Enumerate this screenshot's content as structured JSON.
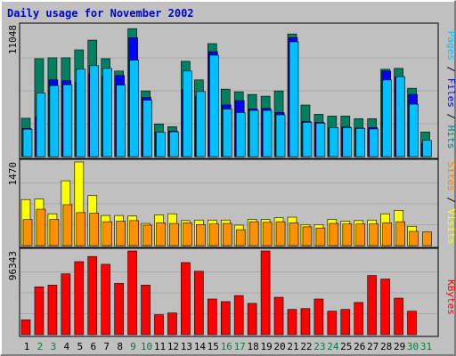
{
  "chart_data": {
    "type": "bar",
    "title": "Daily usage for November 2002",
    "title_color": "#0000cc",
    "categories": [
      "1",
      "2",
      "3",
      "4",
      "5",
      "6",
      "7",
      "8",
      "9",
      "10",
      "11",
      "12",
      "13",
      "14",
      "15",
      "16",
      "17",
      "18",
      "19",
      "20",
      "21",
      "22",
      "23",
      "24",
      "25",
      "26",
      "27",
      "28",
      "29",
      "30",
      "31"
    ],
    "weekend_days": [
      2,
      3,
      9,
      10,
      16,
      17,
      23,
      24,
      30,
      31
    ],
    "weekday_color": "#000000",
    "weekend_color": "#008040",
    "panels": [
      {
        "id": "hits-files-pages",
        "max_label": "11048",
        "ymax": 11048,
        "legend": [
          {
            "text": "Pages",
            "color": "#00c0ff"
          },
          {
            "text": " / ",
            "color": "#000000"
          },
          {
            "text": "Files",
            "color": "#0000ff"
          },
          {
            "text": " / ",
            "color": "#000000"
          },
          {
            "text": "Hits",
            "color": "#008080"
          }
        ],
        "series": [
          {
            "name": "Hits",
            "color": "#008060",
            "offset": 0,
            "values": [
              3220,
              8216,
              8290,
              8290,
              8958,
              9774,
              8216,
              7178,
              10736,
              5514,
              2740,
              2514,
              7994,
              6438,
              9478,
              5662,
              5440,
              5218,
              5070,
              5514,
              10290,
              4328,
              3550,
              3402,
              3402,
              3180,
              3180,
              7326,
              7402,
              5736,
              2070
            ]
          },
          {
            "name": "Files",
            "color": "#0000ff",
            "offset": 1,
            "values": [
              2370,
              3330,
              6440,
              6370,
              6220,
              6960,
              6740,
              6800,
              9980,
              4960,
              2040,
              2150,
              5630,
              5030,
              8800,
              4330,
              4700,
              4000,
              4040,
              3700,
              9990,
              2960,
              2880,
              2410,
              2480,
              2400,
              2440,
              7180,
              6700,
              5220,
              1100
            ]
          },
          {
            "name": "Pages",
            "color": "#00c0ff",
            "offset": 2,
            "values": [
              2300,
              5330,
              5960,
              6030,
              7330,
              7630,
              7400,
              6000,
              8100,
              4740,
              2040,
              2080,
              7180,
              5460,
              8510,
              3990,
              3700,
              3880,
              3880,
              3510,
              9630,
              2880,
              2800,
              2440,
              2440,
              2360,
              2320,
              6430,
              6710,
              4400,
              1360
            ]
          }
        ]
      },
      {
        "id": "visits-sites",
        "max_label": "1470",
        "ymax": 1470,
        "legend": [
          {
            "text": "Sites",
            "color": "#ff8000"
          },
          {
            "text": " / ",
            "color": "#000000"
          },
          {
            "text": "Visits",
            "color": "#ffff00"
          }
        ],
        "series": [
          {
            "name": "Visits",
            "color": "#ffff00",
            "offset": 0,
            "values": [
              810,
              820,
              560,
              1140,
              1470,
              880,
              530,
              530,
              520,
              390,
              540,
              560,
              440,
              450,
              450,
              450,
              360,
              460,
              460,
              490,
              500,
              370,
              370,
              460,
              430,
              440,
              450,
              560,
              620,
              340,
              0
            ]
          },
          {
            "name": "Sites",
            "color": "#ff9000",
            "offset": 2,
            "values": [
              460,
              640,
              460,
              720,
              580,
              570,
              420,
              430,
              440,
              360,
              400,
              390,
              400,
              370,
              380,
              390,
              280,
              420,
              410,
              420,
              400,
              330,
              310,
              390,
              380,
              380,
              380,
              400,
              420,
              250,
              240
            ]
          }
        ]
      },
      {
        "id": "kbytes",
        "max_label": "96343",
        "ymax": 96343,
        "legend": [
          {
            "text": "KBytes",
            "color": "#ff0000"
          }
        ],
        "series": [
          {
            "name": "KBytes",
            "color": "#ff0000",
            "offset": 0,
            "values": [
              17000,
              55000,
              57000,
              70000,
              84000,
              90000,
              81000,
              59000,
              96343,
              57000,
              23000,
              25000,
              83000,
              73000,
              41000,
              38000,
              45000,
              36000,
              96343,
              43000,
              29000,
              30000,
              41000,
              27000,
              29000,
              37000,
              68000,
              64000,
              42000,
              27000,
              0
            ]
          }
        ]
      }
    ]
  }
}
